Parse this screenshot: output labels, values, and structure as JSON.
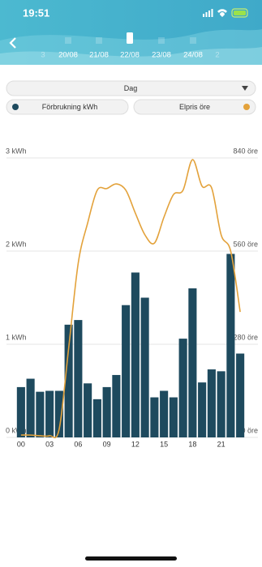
{
  "status_bar": {
    "time": "19:51"
  },
  "date_strip": {
    "dates": [
      "3",
      "20/08",
      "21/08",
      "22/08",
      "23/08",
      "24/08",
      "2"
    ],
    "selected": 3
  },
  "dropdown": {
    "label": "Dag"
  },
  "chart_data": {
    "type": "bar",
    "categories": [
      "00",
      null,
      null,
      "03",
      null,
      null,
      "06",
      null,
      null,
      "09",
      null,
      null,
      "12",
      null,
      null,
      "15",
      null,
      null,
      "18",
      null,
      null,
      "21",
      null,
      null
    ],
    "series": [
      {
        "name": "Förbrukning kWh",
        "color": "#1e4a5e",
        "values": [
          0.54,
          0.63,
          0.49,
          0.5,
          0.5,
          1.21,
          1.26,
          0.58,
          0.41,
          0.54,
          0.67,
          1.42,
          1.77,
          1.5,
          0.43,
          0.5,
          0.43,
          1.06,
          1.6,
          0.59,
          0.73,
          0.71,
          1.97,
          0.9
        ]
      },
      {
        "name": "Elpris öre",
        "color": "#e3a23b",
        "type": "line",
        "axis": "y2",
        "values": [
          7,
          7,
          5,
          5,
          24,
          268,
          523,
          645,
          743,
          748,
          762,
          743,
          674,
          609,
          584,
          662,
          730,
          743,
          835,
          755,
          750,
          609,
          560,
          377
        ]
      }
    ],
    "ylim": [
      0,
      3
    ],
    "yticks": [
      {
        "value": 0,
        "label": "0 kWh"
      },
      {
        "value": 1,
        "label": "1 kWh"
      },
      {
        "value": 2,
        "label": "2 kWh"
      },
      {
        "value": 3,
        "label": "3 kWh"
      }
    ],
    "y2lim": [
      0,
      840
    ],
    "y2ticks": [
      {
        "value": 0,
        "label": "0 öre"
      },
      {
        "value": 280,
        "label": "280 öre"
      },
      {
        "value": 560,
        "label": "560 öre"
      },
      {
        "value": 840,
        "label": "840 öre"
      }
    ],
    "grid": true
  }
}
